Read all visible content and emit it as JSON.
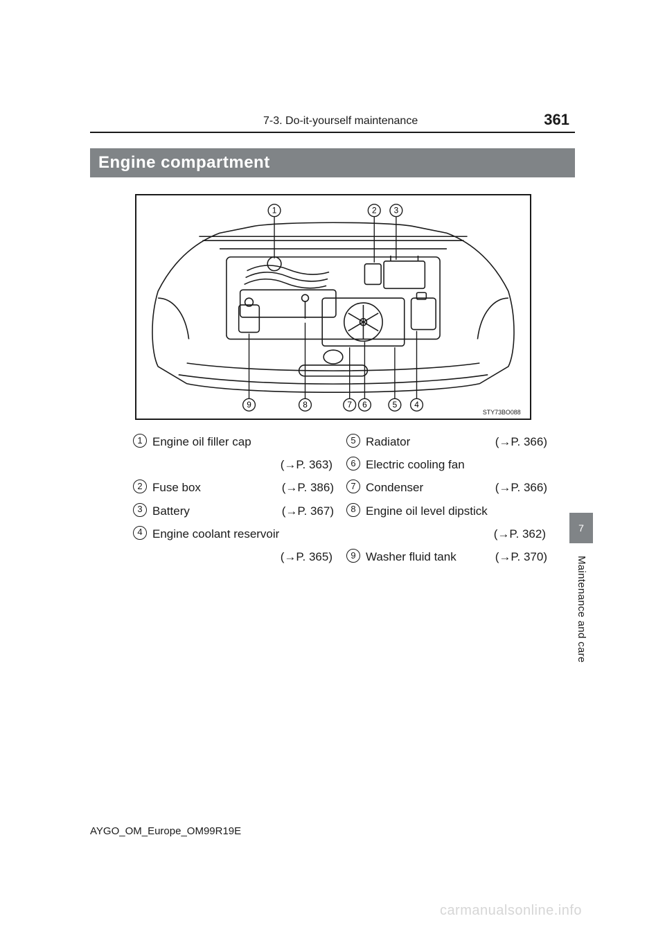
{
  "header": {
    "section": "7-3. Do-it-yourself maintenance",
    "page_number": "361"
  },
  "section_title": "Engine compartment",
  "figure": {
    "code": "STY73BO088",
    "callouts_top": [
      "1",
      "2",
      "3"
    ],
    "callouts_bottom": [
      "9",
      "8",
      "7",
      "6",
      "5",
      "4"
    ],
    "stroke": "#1a1a1a",
    "bg": "#ffffff"
  },
  "legend": {
    "arrow": "→",
    "left": [
      {
        "n": "1",
        "label": "Engine oil filler cap",
        "ref": "P. 363",
        "wrap": true
      },
      {
        "n": "2",
        "label": "Fuse box",
        "ref": "P. 386"
      },
      {
        "n": "3",
        "label": "Battery",
        "ref": "P. 367"
      },
      {
        "n": "4",
        "label": "Engine coolant reservoir",
        "ref": "P. 365",
        "wrap": true
      }
    ],
    "right": [
      {
        "n": "5",
        "label": "Radiator",
        "ref": "P. 366"
      },
      {
        "n": "6",
        "label": "Electric cooling fan",
        "ref": ""
      },
      {
        "n": "7",
        "label": "Condenser",
        "ref": "P. 366"
      },
      {
        "n": "8",
        "label": "Engine oil level dipstick",
        "ref": "P. 362",
        "wrap": true
      },
      {
        "n": "9",
        "label": "Washer fluid tank",
        "ref": "P. 370"
      }
    ]
  },
  "side": {
    "tab": "7",
    "label": "Maintenance and care"
  },
  "footer": "AYGO_OM_Europe_OM99R19E",
  "watermark": "carmanualsonline.info"
}
